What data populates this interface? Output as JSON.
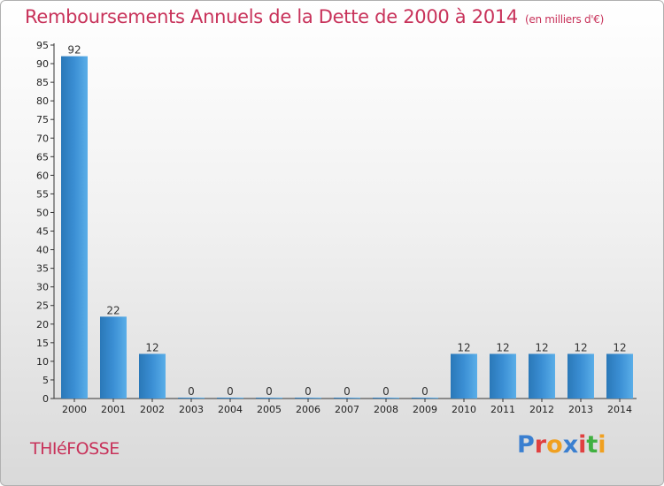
{
  "header": {
    "title": "Remboursements Annuels de la Dette de 2000 à 2014",
    "unit": "(en milliers d'€)"
  },
  "footer": {
    "commune": "THIéFOSSE",
    "logo": [
      "P",
      "r",
      "o",
      "x",
      "i",
      "t",
      "i"
    ]
  },
  "colors": {
    "title": "#c8325a",
    "bar_light": "#5aaee8",
    "bar_dark": "#2a78b8",
    "logo": [
      "#3a7fd0",
      "#e04040",
      "#f0a020",
      "#3a7fd0",
      "#e04040",
      "#40b040",
      "#f0a020"
    ]
  },
  "chart_data": {
    "type": "bar",
    "title": "Remboursements Annuels de la Dette de 2000 à 2014",
    "xlabel": "",
    "ylabel": "",
    "categories": [
      "2000",
      "2001",
      "2002",
      "2003",
      "2004",
      "2005",
      "2006",
      "2007",
      "2008",
      "2009",
      "2010",
      "2011",
      "2012",
      "2013",
      "2014"
    ],
    "values": [
      92,
      22,
      12,
      0,
      0,
      0,
      0,
      0,
      0,
      0,
      12,
      12,
      12,
      12,
      12
    ],
    "ylim": [
      0,
      95
    ],
    "yticks": [
      0,
      5,
      10,
      15,
      20,
      25,
      30,
      35,
      40,
      45,
      50,
      55,
      60,
      65,
      70,
      75,
      80,
      85,
      90,
      95
    ],
    "grid": false,
    "legend": "none"
  }
}
